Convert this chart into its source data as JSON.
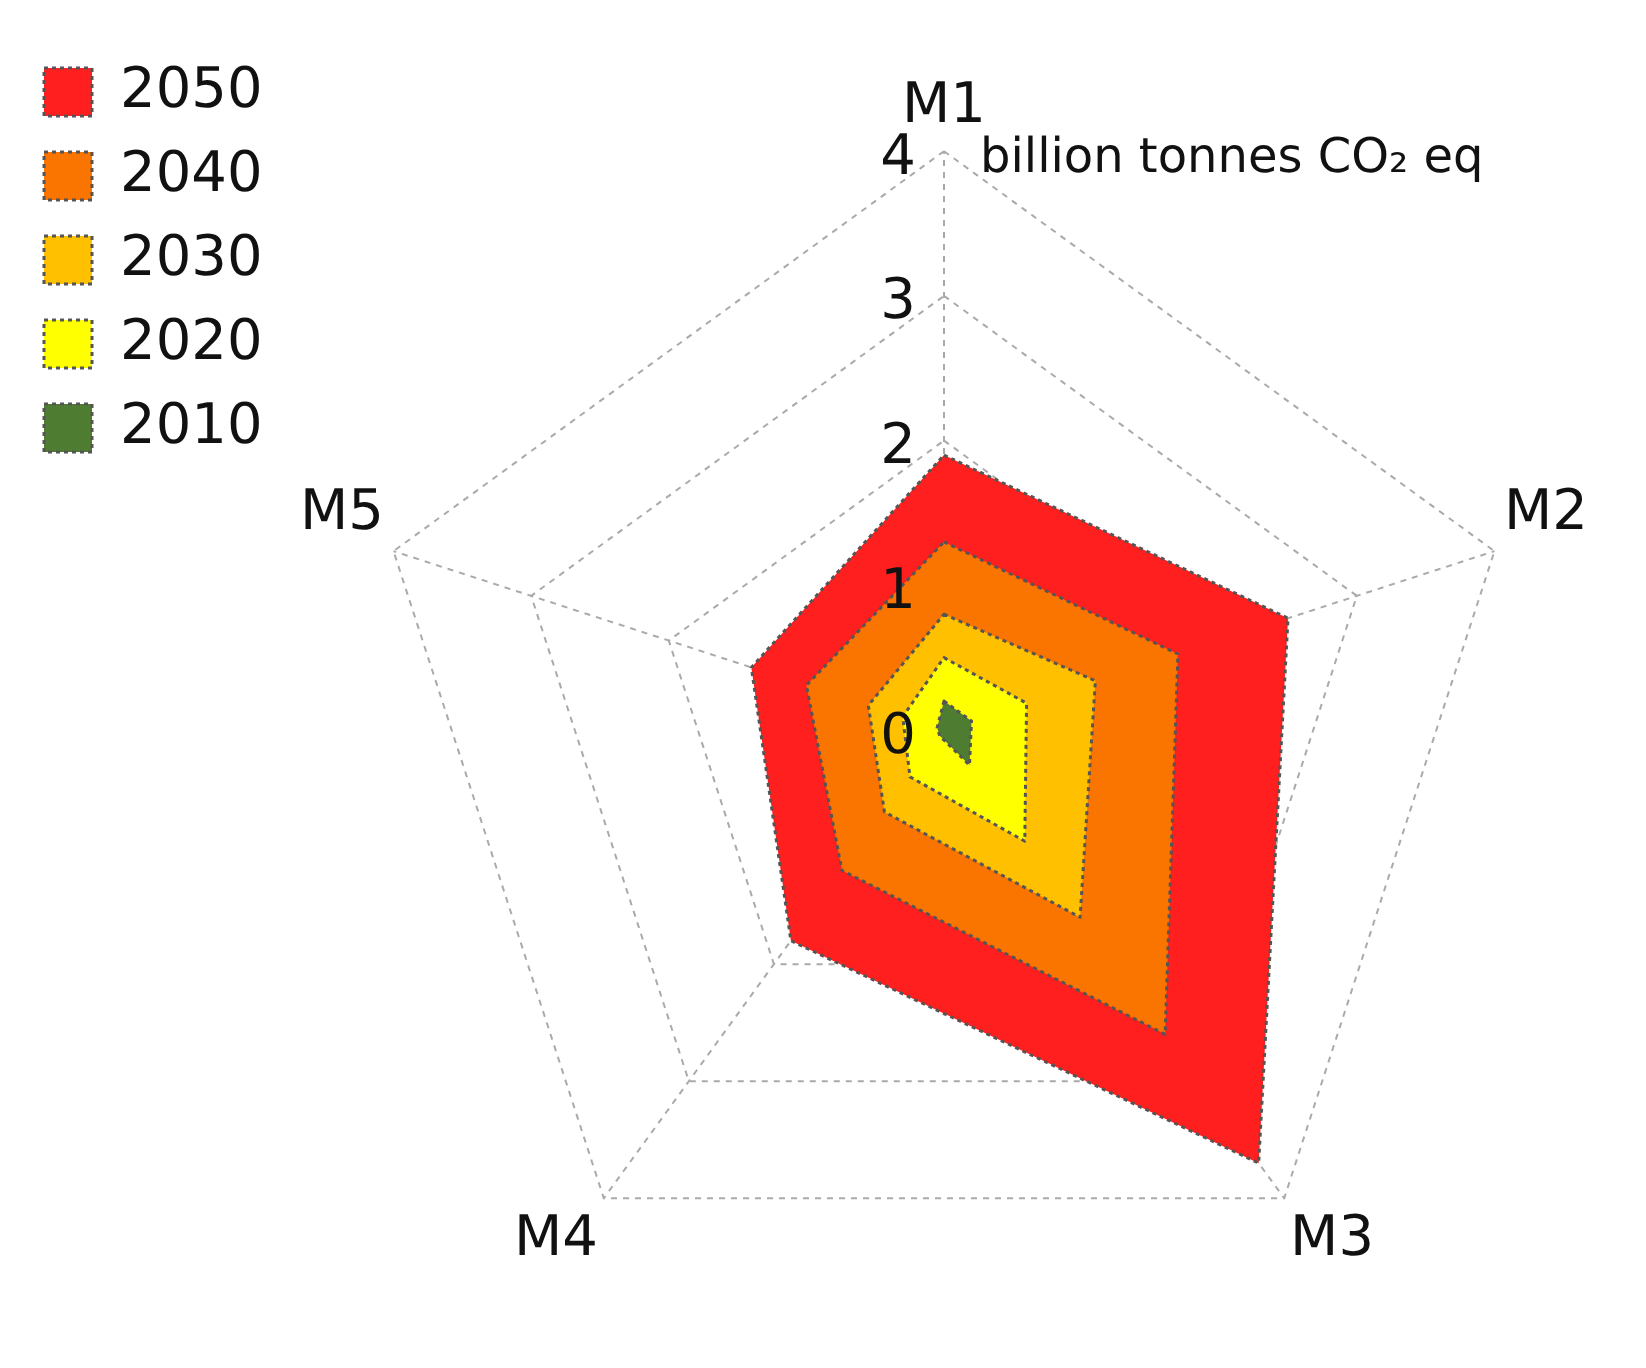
{
  "chart_data": {
    "type": "radar",
    "ylabel": "billion tonnes CO₂ eq",
    "categories": [
      "M1",
      "M2",
      "M3",
      "M4",
      "M5"
    ],
    "series": [
      {
        "name": "2050",
        "color": "#ff1f1f",
        "values": [
          1.9,
          2.5,
          3.7,
          1.8,
          1.4
        ]
      },
      {
        "name": "2040",
        "color": "#fa7500",
        "values": [
          1.3,
          1.7,
          2.6,
          1.2,
          1.0
        ]
      },
      {
        "name": "2030",
        "color": "#ffc000",
        "values": [
          0.8,
          1.1,
          1.6,
          0.7,
          0.55
        ]
      },
      {
        "name": "2020",
        "color": "#ffff00",
        "values": [
          0.5,
          0.6,
          0.95,
          0.4,
          0.3
        ]
      },
      {
        "name": "2010",
        "color": "#4e7d32",
        "values": [
          0.2,
          0.2,
          0.3,
          0.05,
          0.05
        ]
      }
    ],
    "ylim": [
      0,
      4
    ],
    "yticks": [
      0,
      1,
      2,
      3,
      4
    ],
    "grid": true,
    "legend": "top left",
    "marker": "none",
    "line_style": "dotted"
  }
}
